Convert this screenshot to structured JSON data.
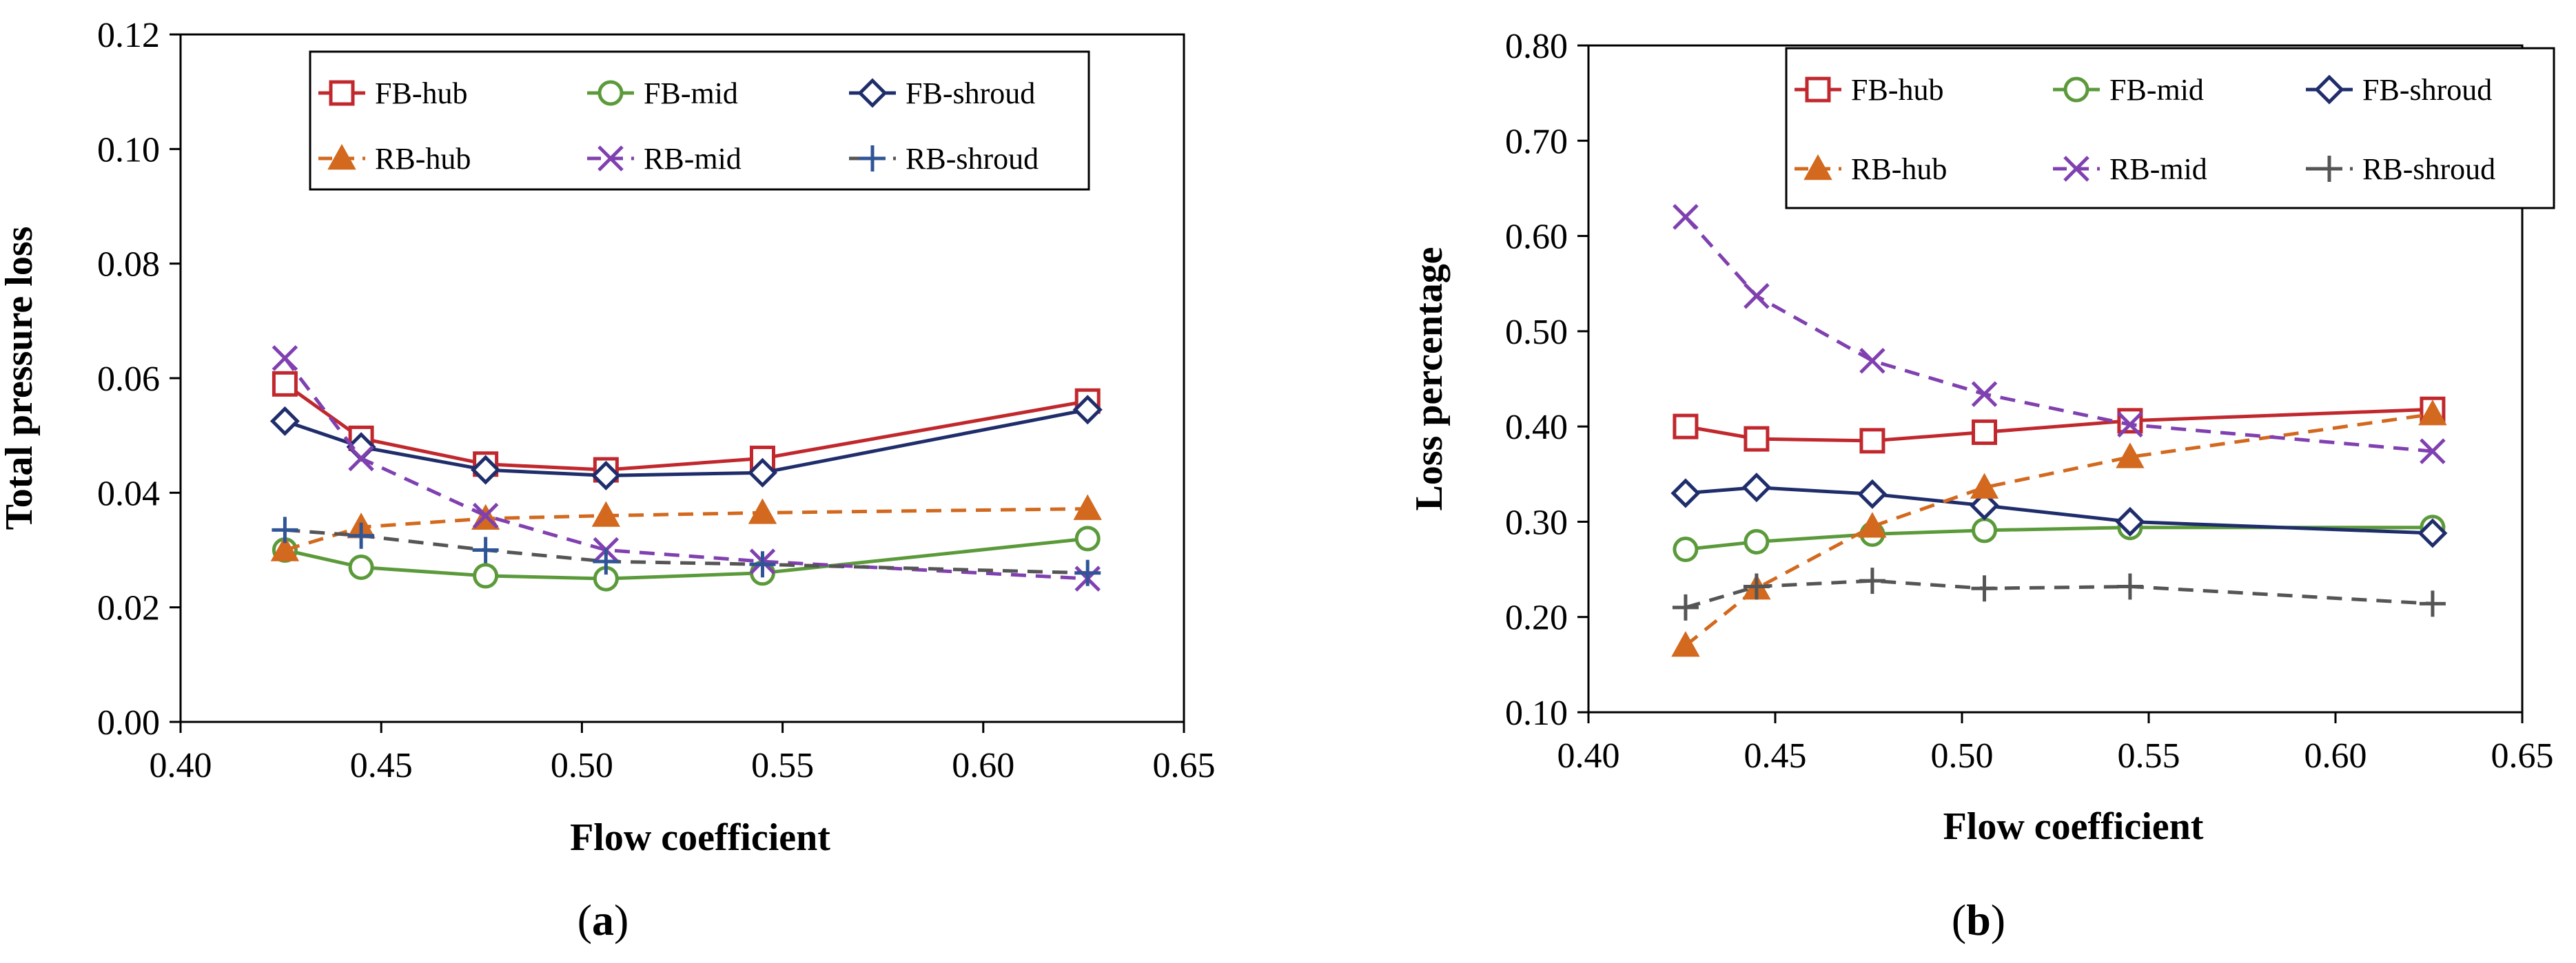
{
  "chart_data": [
    {
      "type": "line",
      "panel_label": "a",
      "xlabel": "Flow coefficient",
      "ylabel": "Total pressure loss",
      "xlim": [
        0.4,
        0.65
      ],
      "ylim": [
        0.0,
        0.12
      ],
      "x_ticks": [
        "0.40",
        "0.45",
        "0.50",
        "0.55",
        "0.60",
        "0.65"
      ],
      "y_ticks": [
        "0.00",
        "0.02",
        "0.04",
        "0.06",
        "0.08",
        "0.10",
        "0.12"
      ],
      "grid": false,
      "legend": "top",
      "x": [
        0.426,
        0.445,
        0.476,
        0.506,
        0.545,
        0.626
      ],
      "series": [
        {
          "name": "FB-hub",
          "values": [
            0.059,
            0.0495,
            0.045,
            0.044,
            0.046,
            0.056
          ],
          "color": "#c0282d",
          "dash": "solid",
          "marker": "square"
        },
        {
          "name": "FB-mid",
          "values": [
            0.03,
            0.027,
            0.0255,
            0.025,
            0.026,
            0.032
          ],
          "color": "#5b9a3a",
          "dash": "solid",
          "marker": "circle"
        },
        {
          "name": "FB-shroud",
          "values": [
            0.0525,
            0.048,
            0.044,
            0.043,
            0.0435,
            0.0545
          ],
          "color": "#1f2d6b",
          "dash": "solid",
          "marker": "diamond"
        },
        {
          "name": "RB-hub",
          "values": [
            0.03,
            0.034,
            0.0355,
            0.036,
            0.0365,
            0.0372
          ],
          "color": "#d2691e",
          "dash": "dashed",
          "marker": "triangle"
        },
        {
          "name": "RB-mid",
          "values": [
            0.0635,
            0.046,
            0.036,
            0.03,
            0.028,
            0.025
          ],
          "color": "#8040b0",
          "dash": "dashed",
          "marker": "x"
        },
        {
          "name": "RB-shroud",
          "values": [
            0.0335,
            0.0325,
            0.03,
            0.028,
            0.0275,
            0.026
          ],
          "color": "#555555",
          "dash": "dashed",
          "marker": "plus",
          "marker_color": "#2f5597"
        }
      ]
    },
    {
      "type": "line",
      "panel_label": "b",
      "xlabel": "Flow coefficient",
      "ylabel": "Loss percentage",
      "xlim": [
        0.4,
        0.65
      ],
      "ylim": [
        0.1,
        0.8
      ],
      "x_ticks": [
        "0.40",
        "0.45",
        "0.50",
        "0.55",
        "0.60",
        "0.65"
      ],
      "y_ticks": [
        "0.10",
        "0.20",
        "0.30",
        "0.40",
        "0.50",
        "0.60",
        "0.70",
        "0.80"
      ],
      "grid": false,
      "legend": "top-right",
      "x": [
        0.426,
        0.445,
        0.476,
        0.506,
        0.545,
        0.626
      ],
      "series": [
        {
          "name": "FB-hub",
          "values": [
            0.4,
            0.387,
            0.385,
            0.394,
            0.406,
            0.418
          ],
          "color": "#c0282d",
          "dash": "solid",
          "marker": "square"
        },
        {
          "name": "FB-mid",
          "values": [
            0.271,
            0.279,
            0.287,
            0.291,
            0.294,
            0.294
          ],
          "color": "#5b9a3a",
          "dash": "solid",
          "marker": "circle"
        },
        {
          "name": "FB-shroud",
          "values": [
            0.33,
            0.336,
            0.329,
            0.317,
            0.3,
            0.288
          ],
          "color": "#1f2d6b",
          "dash": "solid",
          "marker": "diamond"
        },
        {
          "name": "RB-hub",
          "values": [
            0.17,
            0.23,
            0.295,
            0.336,
            0.368,
            0.413
          ],
          "color": "#d2691e",
          "dash": "dashed",
          "marker": "triangle"
        },
        {
          "name": "RB-mid",
          "values": [
            0.62,
            0.537,
            0.469,
            0.434,
            0.402,
            0.374
          ],
          "color": "#8040b0",
          "dash": "dashed",
          "marker": "x"
        },
        {
          "name": "RB-shroud",
          "values": [
            0.21,
            0.232,
            0.238,
            0.23,
            0.232,
            0.214
          ],
          "color": "#555555",
          "dash": "dashed",
          "marker": "plus"
        }
      ]
    }
  ]
}
